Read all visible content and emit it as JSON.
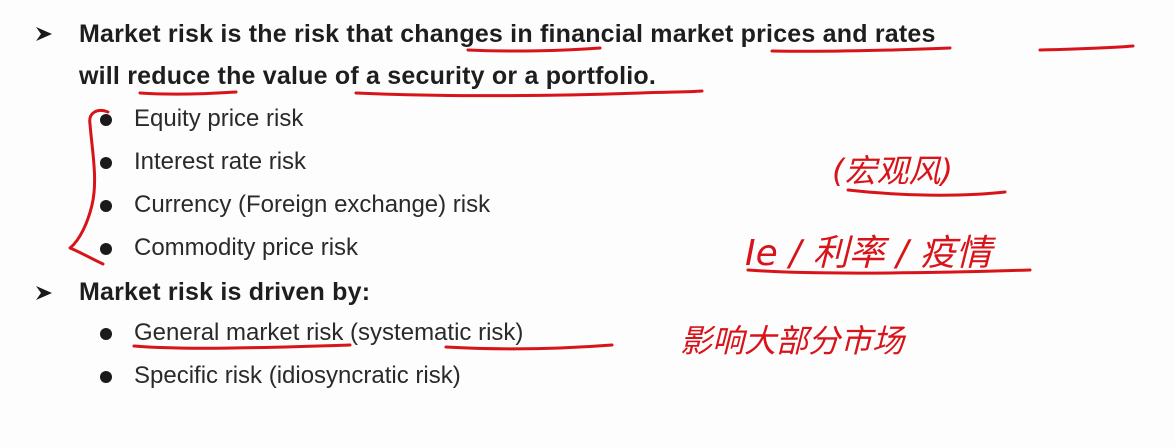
{
  "bullets": {
    "main1_line1": "Market risk is the risk that changes in financial market prices and rates",
    "main1_line2": "will reduce the value of a security or a portfolio.",
    "sub1": [
      "Equity price risk",
      "Interest rate risk",
      "Currency (Foreign exchange) risk",
      "Commodity price risk"
    ],
    "main2": "Market risk is driven by:",
    "sub2": [
      "General market risk (systematic risk)",
      "Specific risk (idiosyncratic risk)"
    ]
  },
  "annotations": {
    "note_macro": "(宏观风)",
    "note_factors": "Ie / 利率 / 疫情",
    "note_affect": "影响大部分市场"
  },
  "colors": {
    "ink": "#d8141a",
    "text": "#1e1e1e"
  }
}
